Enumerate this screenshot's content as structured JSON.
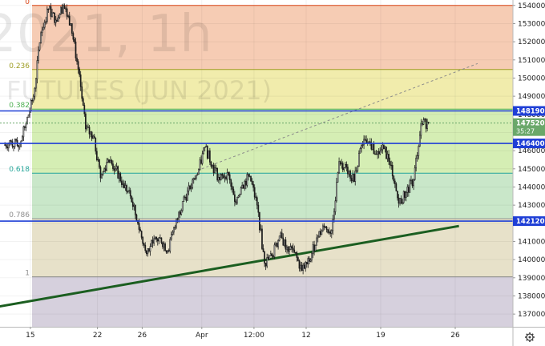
{
  "watermark": {
    "line1": "2021, 1h",
    "line2": "FUTURES (JUN 2021)"
  },
  "colors": {
    "candle": "#1c1c1c",
    "horizontal_level": "#1f3fd6",
    "trendline": "#1b5e20",
    "fib_line_0_0236": "#d84315",
    "fib_line_0236_0382": "#9e9d24",
    "fib_line_0382_0618": "#4caf50",
    "fib_line_0618_0786": "#26a69a",
    "fib_line_0786_1": "#8d8d8d",
    "fib_zone_0_0236": "#f6ccb4",
    "fib_zone_0236_0382": "#f1ecac",
    "fib_zone_0382_0618": "#d5eeb4",
    "fib_zone_0618_0786": "#c9e7c9",
    "fib_zone_0786_1": "#e7e1c9",
    "fib_zone_below_1": "#d6d0dd",
    "price_badge": "#6aa86a"
  },
  "icons": {
    "settings": "gear-icon"
  },
  "chart_data": {
    "type": "candlestick",
    "y_axis": {
      "side": "right",
      "range": [
        136300,
        154300
      ],
      "ticks": [
        137000,
        138000,
        139000,
        140000,
        141000,
        142000,
        143000,
        144000,
        145000,
        146000,
        147000,
        148000,
        149000,
        150000,
        151000,
        152000,
        153000,
        154000
      ],
      "tick_labels": [
        "137000",
        "138000",
        "139000",
        "140000",
        "141000",
        "142000",
        "143000",
        "144000",
        "145000",
        "146000",
        "147000",
        "148000",
        "149000",
        "150000",
        "151000",
        "152000",
        "153000",
        "154000"
      ]
    },
    "x_axis": {
      "tick_labels": [
        "15",
        "22",
        "26",
        "Apr",
        "12:00",
        "12",
        "19",
        "26"
      ],
      "tick_positions": [
        3,
        12,
        18,
        26,
        33,
        40,
        50,
        60
      ]
    },
    "fibonacci": {
      "high": 154000,
      "low": 139050,
      "levels": [
        {
          "ratio": 0,
          "label": "0",
          "price": 154000
        },
        {
          "ratio": 0.236,
          "label": "0.236",
          "price": 150472
        },
        {
          "ratio": 0.382,
          "label": "0.382",
          "price": 148289
        },
        {
          "ratio": 0.618,
          "label": "0.618",
          "price": 144761
        },
        {
          "ratio": 0.786,
          "label": "0.786",
          "price": 142250
        },
        {
          "ratio": 1,
          "label": "1",
          "price": 139050
        }
      ]
    },
    "horizontal_levels": [
      {
        "price": 148190,
        "label": "148190"
      },
      {
        "price": 146400,
        "label": "146400"
      },
      {
        "price": 142120,
        "label": "142120"
      }
    ],
    "last_price": {
      "price": 147520,
      "label": "147520",
      "countdown": "35:27"
    },
    "trendline": {
      "start": {
        "x": -3.5,
        "price": 137250
      },
      "end": {
        "x": 60.5,
        "price": 141850
      }
    },
    "channel_line": {
      "start": {
        "x": 26,
        "price": 145000
      },
      "end": {
        "x": 63,
        "price": 150800
      }
    },
    "candles_from_x": 0,
    "candle_closes": [
      146500,
      146200,
      147500,
      149000,
      152500,
      153800,
      153200,
      154000,
      153000,
      150500,
      147200,
      146800,
      144500,
      145500,
      145000,
      144200,
      143500,
      142000,
      140500,
      140900,
      141200,
      140500,
      141800,
      143200,
      143900,
      144700,
      146200,
      145200,
      144400,
      144800,
      143200,
      144100,
      144600,
      143000,
      139800,
      140200,
      141300,
      140700,
      140400,
      139400,
      139900,
      141200,
      141800,
      141600,
      145400,
      145100,
      144300,
      146300,
      146500,
      145800,
      146100,
      145200,
      143100,
      143700,
      144400,
      147500,
      147520
    ]
  }
}
